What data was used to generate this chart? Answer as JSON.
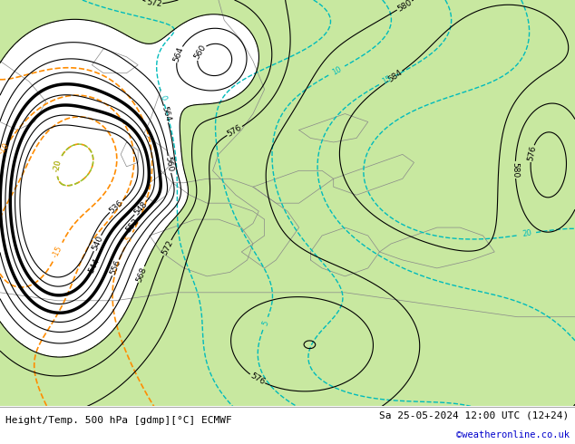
{
  "title_left": "Height/Temp. 500 hPa [gdmp][°C] ECMWF",
  "title_right": "Sa 25-05-2024 12:00 UTC (12+24)",
  "credit": "©weatheronline.co.uk",
  "fig_width": 6.34,
  "fig_height": 4.9,
  "bg_color": "#d8d8d8",
  "green_color": "#c8e8a0",
  "contour_color": "#000000",
  "temp_neg_color": "#ff8c00",
  "temp_yg_color": "#90c830",
  "temp_cyan_color": "#00bbbb",
  "bottom_text_color": "#000000",
  "credit_color": "#0000cc",
  "border_color": "#888888"
}
